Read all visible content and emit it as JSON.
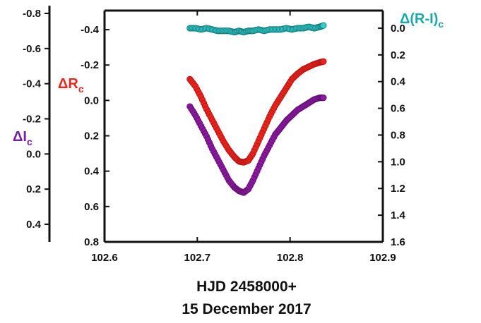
{
  "chart_data": {
    "type": "scatter",
    "xlabel_line1": "HJD 2458000+",
    "xlabel_line2": "15 December 2017",
    "x_ticks": [
      "102.6",
      "102.7",
      "102.8",
      "102.9"
    ],
    "xlim": [
      102.6,
      102.9
    ],
    "axes": {
      "Ic": {
        "label": "ΔI",
        "sub": "c",
        "color": "#7a1fa2",
        "ylim": [
          -0.8,
          0.4
        ],
        "inverted": true,
        "ticks": [
          "-0.8",
          "-0.6",
          "-0.4",
          "-0.2",
          "0.0",
          "0.2",
          "0.4"
        ]
      },
      "Rc": {
        "label": "ΔR",
        "sub": "c",
        "color": "#e8261e",
        "ylim": [
          -0.5,
          0.8
        ],
        "inverted": true,
        "ticks": [
          "-0.4",
          "-0.2",
          "0.0",
          "0.2",
          "0.4",
          "0.6",
          "0.8"
        ]
      },
      "RI": {
        "label": "Δ(R-I)",
        "sub": "c",
        "color": "#1aa8a8",
        "ylim": [
          -0.1,
          1.6
        ],
        "inverted": true,
        "ticks": [
          "0.0",
          "0.2",
          "0.4",
          "0.6",
          "0.8",
          "1.0",
          "1.2",
          "1.4",
          "1.6"
        ]
      }
    },
    "series": [
      {
        "axis": "Rc",
        "color": "#e8261e",
        "stroke": "#b01010",
        "x": [
          102.692,
          102.698,
          102.704,
          102.71,
          102.716,
          102.722,
          102.728,
          102.734,
          102.74,
          102.745,
          102.75,
          102.755,
          102.76,
          102.766,
          102.772,
          102.778,
          102.784,
          102.79,
          102.796,
          102.802,
          102.808,
          102.814,
          102.82,
          102.826,
          102.832,
          102.836
        ],
        "y": [
          -0.12,
          -0.08,
          -0.02,
          0.05,
          0.11,
          0.17,
          0.23,
          0.28,
          0.32,
          0.345,
          0.35,
          0.34,
          0.3,
          0.23,
          0.16,
          0.09,
          0.03,
          -0.02,
          -0.07,
          -0.12,
          -0.15,
          -0.175,
          -0.19,
          -0.205,
          -0.215,
          -0.22
        ]
      },
      {
        "axis": "Ic",
        "color": "#8b1a9e",
        "stroke": "#5e0c6e",
        "x": [
          102.692,
          102.698,
          102.704,
          102.71,
          102.716,
          102.722,
          102.728,
          102.734,
          102.74,
          102.745,
          102.75,
          102.755,
          102.76,
          102.766,
          102.772,
          102.778,
          102.784,
          102.79,
          102.796,
          102.802,
          102.808,
          102.814,
          102.82,
          102.826,
          102.832,
          102.836
        ],
        "y": [
          -0.27,
          -0.22,
          -0.16,
          -0.1,
          -0.03,
          0.03,
          0.09,
          0.15,
          0.19,
          0.21,
          0.22,
          0.2,
          0.15,
          0.08,
          0.01,
          -0.05,
          -0.11,
          -0.15,
          -0.19,
          -0.22,
          -0.25,
          -0.27,
          -0.29,
          -0.31,
          -0.32,
          -0.32
        ]
      },
      {
        "axis": "RI",
        "color": "#33cccc",
        "stroke": "#117777",
        "x": [
          102.692,
          102.698,
          102.704,
          102.71,
          102.716,
          102.722,
          102.728,
          102.734,
          102.74,
          102.745,
          102.75,
          102.755,
          102.76,
          102.766,
          102.772,
          102.778,
          102.784,
          102.79,
          102.796,
          102.802,
          102.808,
          102.814,
          102.82,
          102.826,
          102.832,
          102.836
        ],
        "y": [
          0.0,
          0.0,
          0.01,
          0.0,
          0.01,
          0.02,
          0.02,
          0.02,
          0.03,
          0.02,
          0.03,
          0.02,
          0.02,
          0.01,
          0.02,
          0.01,
          0.01,
          0.01,
          0.0,
          0.01,
          0.0,
          0.0,
          -0.01,
          0.0,
          -0.01,
          -0.02
        ]
      }
    ]
  }
}
